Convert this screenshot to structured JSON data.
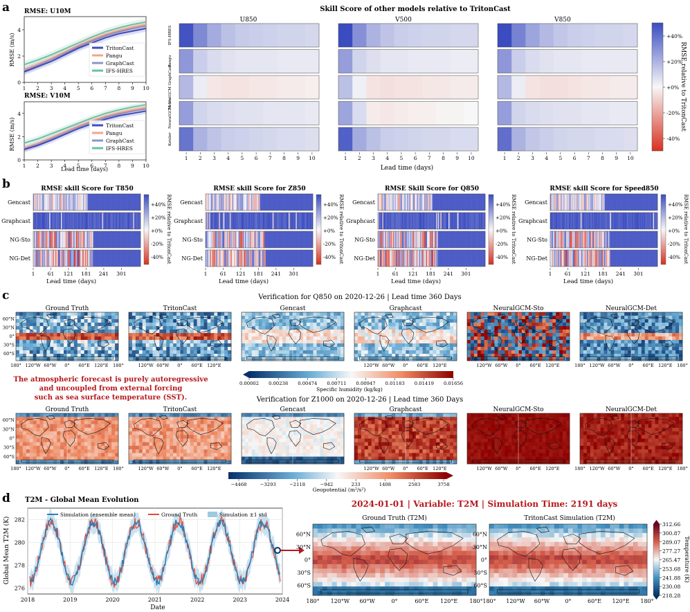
{
  "panel_letters": [
    "a",
    "b",
    "c",
    "d"
  ],
  "colors": {
    "blue": "#3b4cc0",
    "red": "#d7301f",
    "dark_red": "#b5171b",
    "ocean": "#2c7bb6"
  },
  "panel_a": {
    "title": "Skill Score of other models relative to TritonCast",
    "xlabel": "Lead time (days)",
    "cbar_label": "RMSE relative to TritonCast",
    "cbar_ticks": [
      "+40%",
      "+20%",
      "+0%",
      "-20%",
      "-40%"
    ]
  },
  "panel_b": {
    "xlabel": "Lead time (days)",
    "cbar_label": "RMSE relative to TritonCast",
    "cbar_ticks": [
      "+40%",
      "+20%",
      "+0%",
      "-20%",
      "-40%"
    ]
  },
  "panel_c": {
    "title_q850": "Verification for Q850 on 2020-12-26 | Lead time 360 Days",
    "title_z1000": "Verification for Z1000 on 2020-12-26 | Lead time 360 Days",
    "map_titles_q850": [
      "Ground Truth",
      "TritonCast",
      "Gencast",
      "Graphcast",
      "NeuralGCM-Sto",
      "NeuralGCM-Det"
    ],
    "map_titles_z1000": [
      "Ground Truth",
      "TritonCast",
      "Gencast",
      "Graphcast",
      "NeuralGCM-Sto",
      "NeuralGCM-Det"
    ],
    "lat_ticks": [
      "60°N",
      "30°N",
      "0°",
      "30°S",
      "60°S"
    ],
    "lon_ticks": [
      "180°",
      "120°W",
      "60°W",
      "0°",
      "60°E",
      "120°E",
      "180°"
    ],
    "note_lines": [
      "The atmospheric forecast is purely autoregressive",
      "and uncoupled from external forcing",
      "such as sea surface temperature (SST)."
    ],
    "q_cbar_ticks": [
      "0.00002",
      "0.00238",
      "0.00474",
      "0.00711",
      "0.00947",
      "0.01183",
      "0.01419",
      "0.01656"
    ],
    "q_cbar_label": "Specific humidity (kg/kg)",
    "z_cbar_ticks": [
      "−4468",
      "−3293",
      "−2118",
      "−942",
      "233",
      "1408",
      "2583",
      "3758"
    ],
    "z_cbar_label": "Geopotential (m²/s²)"
  },
  "panel_d": {
    "headline": "2024-01-01 | Variable: T2M | Simulation Time: 2191 days",
    "map_titles": [
      "Ground Truth (T2M)",
      "TritonCast Simulation (T2M)"
    ],
    "lat_ticks": [
      "60°N",
      "30°N",
      "0°",
      "30°S",
      "60°S"
    ],
    "lon_ticks": [
      "180°",
      "120°W",
      "60°W",
      "0°",
      "60°E",
      "120°E",
      "180°"
    ],
    "cbar_ticks": [
      "312.66",
      "300.87",
      "289.07",
      "277.27",
      "265.47",
      "253.68",
      "241.88",
      "230.08",
      "218.28"
    ],
    "cbar_label": "Temperature (K)"
  },
  "chart_data": [
    {
      "type": "line",
      "title": "RMSE: U10M",
      "xlabel": "",
      "ylabel": "RMSE (m/s)",
      "x": [
        1,
        2,
        3,
        4,
        5,
        6,
        7,
        8,
        9,
        10
      ],
      "xlim": [
        1,
        10
      ],
      "ylim": [
        0,
        5
      ],
      "yticks": [
        0,
        2,
        4
      ],
      "legend": "lower-right",
      "series": [
        {
          "name": "TritonCast",
          "color": "#3b4cc0",
          "values": [
            0.8,
            1.2,
            1.6,
            2.1,
            2.6,
            3.0,
            3.4,
            3.7,
            3.9,
            4.1
          ]
        },
        {
          "name": "Pangu",
          "color": "#f4a582",
          "values": [
            0.95,
            1.35,
            1.8,
            2.3,
            2.8,
            3.25,
            3.65,
            3.95,
            4.2,
            4.4
          ]
        },
        {
          "name": "GraphCast",
          "color": "#8c96c6",
          "values": [
            0.9,
            1.3,
            1.75,
            2.2,
            2.7,
            3.15,
            3.55,
            3.85,
            4.1,
            4.3
          ]
        },
        {
          "name": "IFS-HRES",
          "color": "#66c2a5",
          "values": [
            1.35,
            1.7,
            2.1,
            2.55,
            3.0,
            3.45,
            3.85,
            4.15,
            4.4,
            4.6
          ]
        }
      ]
    },
    {
      "type": "line",
      "title": "RMSE: V10M",
      "xlabel": "Lead time (days)",
      "ylabel": "RMSE (m/s)",
      "x": [
        1,
        2,
        3,
        4,
        5,
        6,
        7,
        8,
        9,
        10
      ],
      "xlim": [
        1,
        10
      ],
      "ylim": [
        0,
        5
      ],
      "yticks": [
        0,
        2,
        4
      ],
      "legend": "lower-right",
      "series": [
        {
          "name": "TritonCast",
          "color": "#3b4cc0",
          "values": [
            0.9,
            1.25,
            1.7,
            2.2,
            2.7,
            3.1,
            3.5,
            3.8,
            4.0,
            4.2
          ]
        },
        {
          "name": "Pangu",
          "color": "#f4a582",
          "values": [
            1.0,
            1.4,
            1.9,
            2.4,
            2.9,
            3.35,
            3.75,
            4.05,
            4.3,
            4.5
          ]
        },
        {
          "name": "GraphCast",
          "color": "#8c96c6",
          "values": [
            0.95,
            1.35,
            1.85,
            2.35,
            2.85,
            3.25,
            3.65,
            3.95,
            4.2,
            4.4
          ]
        },
        {
          "name": "IFS-HRES",
          "color": "#66c2a5",
          "values": [
            1.45,
            1.8,
            2.25,
            2.7,
            3.15,
            3.6,
            4.0,
            4.3,
            4.55,
            4.75
          ]
        }
      ]
    },
    {
      "type": "heatmap",
      "title": "U850",
      "rows": [
        "IFS-HRES",
        "Pangu",
        "NeuralGCM GraphCast",
        "NeuralGCM-Sto",
        "Keisler"
      ],
      "x": [
        1,
        2,
        3,
        4,
        5,
        6,
        7,
        8,
        9,
        10
      ],
      "xlabel": "Lead time (days)",
      "values": [
        [
          48,
          32,
          22,
          16,
          13,
          12,
          11,
          10,
          10,
          9
        ],
        [
          28,
          12,
          8,
          6,
          5,
          5,
          5,
          4,
          4,
          4
        ],
        [
          18,
          3,
          -4,
          -5,
          -5,
          -4,
          -4,
          -3,
          -3,
          -2
        ],
        [
          26,
          10,
          8,
          7,
          6,
          6,
          5,
          5,
          5,
          4
        ],
        [
          38,
          20,
          15,
          12,
          11,
          10,
          9,
          8,
          8,
          7
        ]
      ]
    },
    {
      "type": "heatmap",
      "title": "V500",
      "rows": [
        "IFS-HRES",
        "Pangu",
        "NeuralGCM GraphCast",
        "NeuralGCM-Sto",
        "Keisler"
      ],
      "x": [
        1,
        2,
        3,
        4,
        5,
        6,
        7,
        8,
        9,
        10
      ],
      "xlabel": "Lead time (days)",
      "values": [
        [
          50,
          30,
          20,
          15,
          12,
          11,
          10,
          10,
          9,
          9
        ],
        [
          26,
          10,
          7,
          5,
          5,
          4,
          4,
          4,
          3,
          3
        ],
        [
          16,
          2,
          -5,
          -6,
          -5,
          -5,
          -4,
          -4,
          -3,
          -3
        ],
        [
          24,
          8,
          -3,
          -4,
          -3,
          -2,
          -2,
          -1,
          -1,
          0
        ],
        [
          44,
          22,
          16,
          12,
          11,
          10,
          9,
          9,
          8,
          8
        ]
      ]
    },
    {
      "type": "heatmap",
      "title": "V850",
      "rows": [
        "IFS-HRES",
        "Pangu",
        "NeuralGCM GraphCast",
        "NeuralGCM-Sto",
        "Keisler"
      ],
      "x": [
        1,
        2,
        3,
        4,
        5,
        6,
        7,
        8,
        9,
        10
      ],
      "xlabel": "Lead time (days)",
      "values": [
        [
          52,
          34,
          24,
          18,
          14,
          12,
          11,
          10,
          10,
          9
        ],
        [
          28,
          12,
          8,
          6,
          5,
          5,
          4,
          4,
          4,
          4
        ],
        [
          18,
          3,
          -5,
          -6,
          -6,
          -5,
          -4,
          -4,
          -3,
          -3
        ],
        [
          26,
          10,
          8,
          7,
          6,
          6,
          5,
          5,
          4,
          4
        ],
        [
          40,
          20,
          14,
          12,
          10,
          9,
          9,
          8,
          8,
          7
        ]
      ]
    },
    {
      "type": "heatmap",
      "title": "RMSE skill Score for T850",
      "rows": [
        "Gencast",
        "Graphcast",
        "NG-Sto",
        "NG-Det"
      ],
      "xticks": [
        1,
        61,
        121,
        181,
        241,
        301
      ],
      "xlabel": "Lead time (days)",
      "seeds": [
        11,
        12,
        13,
        14
      ]
    },
    {
      "type": "heatmap",
      "title": "RMSE skill Score for Z850",
      "rows": [
        "Gencast",
        "Graphcast",
        "NG-Sto",
        "NG-Det"
      ],
      "xticks": [
        1,
        61,
        121,
        181,
        241,
        301
      ],
      "xlabel": "Lead time (days)",
      "seeds": [
        21,
        22,
        23,
        24
      ]
    },
    {
      "type": "heatmap",
      "title": "RMSE Skill Score for Q850",
      "rows": [
        "Gencast",
        "Graphcast",
        "NG-Sto",
        "NG-Det"
      ],
      "xticks": [
        1,
        61,
        121,
        181,
        241,
        301
      ],
      "xlabel": "Lead time (days)",
      "seeds": [
        31,
        32,
        33,
        34
      ]
    },
    {
      "type": "heatmap",
      "title": "RMSE skill Score for Speed850",
      "rows": [
        "Gencast",
        "Graphcast",
        "NG-Sto",
        "NG-Det"
      ],
      "xticks": [
        1,
        61,
        121,
        181,
        241,
        301
      ],
      "xlabel": "Lead time (days)",
      "seeds": [
        41,
        42,
        43,
        44
      ]
    },
    {
      "type": "line",
      "title": "T2M - Global Mean Evolution",
      "xlabel": "Date",
      "ylabel": "Global Mean T2M (K)",
      "xticks": [
        "2018",
        "2019",
        "2020",
        "2021",
        "2022",
        "2023",
        "2024"
      ],
      "xlim": [
        2018,
        2024
      ],
      "ylim": [
        275.5,
        283
      ],
      "yticks": [
        276,
        278,
        280,
        282
      ],
      "legend_labels": [
        "Simulation (ensemble mean)",
        "Ground Truth",
        "Simulation ±1 std"
      ],
      "mean": 279.2,
      "amplitude": 2.6,
      "peak_phase": 0.55
    }
  ]
}
